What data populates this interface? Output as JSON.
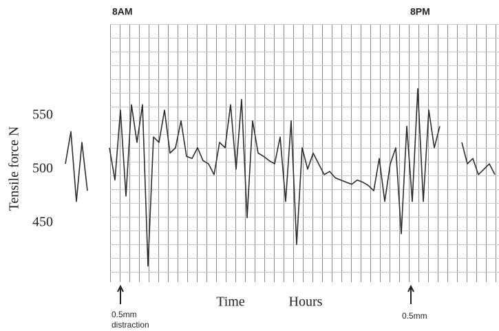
{
  "chart_data": {
    "type": "line",
    "ylabel": "Tensile force N",
    "xlabel": "Time",
    "xunit": "Hours",
    "ylim": [
      395,
      635
    ],
    "yticks": [
      450,
      500,
      550
    ],
    "annotations": [
      "8AM",
      "8PM",
      "0.5mm",
      "distraction",
      "0.5mm"
    ],
    "series": [
      {
        "color": "#2b2b2b",
        "values": [
          505,
          535,
          470,
          525,
          480,
          null,
          null,
          null,
          520,
          490,
          555,
          475,
          560,
          525,
          560,
          410,
          530,
          525,
          555,
          515,
          520,
          545,
          512,
          510,
          520,
          508,
          505,
          495,
          525,
          520,
          560,
          500,
          565,
          455,
          545,
          515,
          512,
          508,
          505,
          530,
          470,
          545,
          430,
          520,
          500,
          515,
          505,
          495,
          498,
          492,
          490,
          488,
          486,
          490,
          488,
          485,
          480,
          510,
          470,
          505,
          520,
          440,
          540,
          470,
          575,
          470,
          555,
          520,
          540,
          null,
          null,
          null,
          525,
          505,
          510,
          495,
          500,
          505,
          495
        ]
      }
    ]
  }
}
